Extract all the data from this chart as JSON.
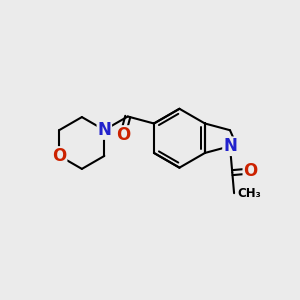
{
  "background_color": "#ebebeb",
  "bond_color": "#000000",
  "nitrogen_color": "#2222cc",
  "oxygen_color": "#cc2200",
  "bond_width": 1.5,
  "figsize": [
    3.0,
    3.0
  ],
  "dpi": 100,
  "xlim": [
    0,
    10
  ],
  "ylim": [
    0,
    10
  ]
}
